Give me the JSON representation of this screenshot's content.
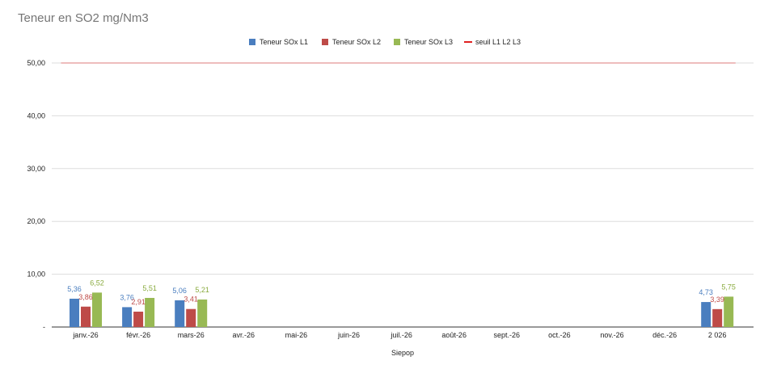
{
  "chart_data": {
    "type": "bar",
    "title": "Teneur en SO2 mg/Nm3",
    "xlabel": "Siepop",
    "ylabel": "",
    "ylim": [
      0,
      50
    ],
    "yticks": [
      0,
      10,
      20,
      30,
      40,
      50
    ],
    "ytick_labels": [
      "-",
      "10,00",
      "20,00",
      "30,00",
      "40,00",
      "50,00"
    ],
    "categories": [
      "janv.-26",
      "févr.-26",
      "mars-26",
      "avr.-26",
      "mai-26",
      "juin-26",
      "juil.-26",
      "août-26",
      "sept.-26",
      "oct.-26",
      "nov.-26",
      "déc.-26",
      "2 026"
    ],
    "grid": true,
    "legend_position": "top",
    "series": [
      {
        "name": "Teneur SOx L1",
        "type": "bar",
        "color": "#4a7ebf",
        "label_color": "#4a7ebf",
        "values": [
          5.36,
          3.76,
          5.06,
          null,
          null,
          null,
          null,
          null,
          null,
          null,
          null,
          null,
          4.73
        ],
        "labels": [
          "5,36",
          "3,76",
          "5,06",
          null,
          null,
          null,
          null,
          null,
          null,
          null,
          null,
          null,
          "4,73"
        ]
      },
      {
        "name": "Teneur SOx L2",
        "type": "bar",
        "color": "#be4b48",
        "label_color": "#be4b48",
        "values": [
          3.86,
          2.91,
          3.41,
          null,
          null,
          null,
          null,
          null,
          null,
          null,
          null,
          null,
          3.39
        ],
        "labels": [
          "3,86",
          "2,91",
          "3,41",
          null,
          null,
          null,
          null,
          null,
          null,
          null,
          null,
          null,
          "3,39"
        ]
      },
      {
        "name": "Teneur SOx L3",
        "type": "bar",
        "color": "#98b954",
        "label_color": "#8aab3f",
        "values": [
          6.52,
          5.51,
          5.21,
          null,
          null,
          null,
          null,
          null,
          null,
          null,
          null,
          null,
          5.75
        ],
        "labels": [
          "6,52",
          "5,51",
          "5,21",
          null,
          null,
          null,
          null,
          null,
          null,
          null,
          null,
          null,
          "5,75"
        ]
      },
      {
        "name": "seuil L1 L2 L3",
        "type": "line",
        "color": "#e8a6a6",
        "legend_color": "#e02020",
        "values": [
          50,
          50,
          50,
          50,
          50,
          50,
          50,
          50,
          50,
          50,
          50,
          50,
          50
        ]
      }
    ]
  }
}
